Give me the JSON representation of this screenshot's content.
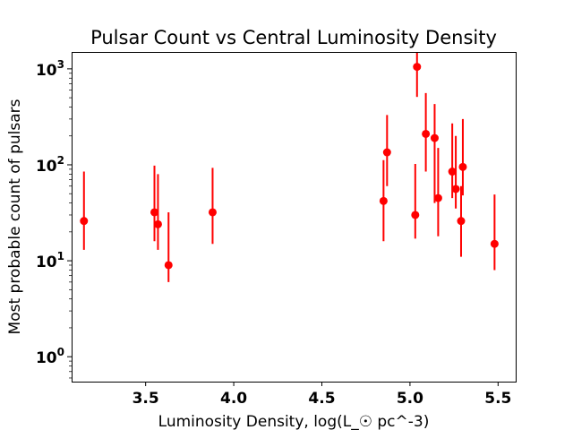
{
  "chart_data": {
    "type": "scatter",
    "title": "Pulsar Count vs Central Luminosity Density",
    "xlabel": "Luminosity Density, log(L_☉ pc^-3)",
    "ylabel": "Most probable count of pulsars",
    "xlim": [
      3.08,
      5.6
    ],
    "ylim": [
      0.55,
      1500
    ],
    "yscale": "log",
    "grid": false,
    "marker_color": "#ff0000",
    "xticks": [
      {
        "value": 3.5,
        "label": "3.5"
      },
      {
        "value": 4.0,
        "label": "4.0"
      },
      {
        "value": 4.5,
        "label": "4.5"
      },
      {
        "value": 5.0,
        "label": "5.0"
      },
      {
        "value": 5.5,
        "label": "5.5"
      }
    ],
    "yticks": [
      {
        "value": 1,
        "base": "10",
        "exp": "0"
      },
      {
        "value": 10,
        "base": "10",
        "exp": "1"
      },
      {
        "value": 100,
        "base": "10",
        "exp": "2"
      },
      {
        "value": 1000,
        "base": "10",
        "exp": "3"
      }
    ],
    "points": [
      {
        "x": 3.15,
        "y": 26,
        "ylow": 13,
        "yhigh": 85
      },
      {
        "x": 3.55,
        "y": 32,
        "ylow": 16,
        "yhigh": 98
      },
      {
        "x": 3.57,
        "y": 24,
        "ylow": 13,
        "yhigh": 80
      },
      {
        "x": 3.63,
        "y": 9,
        "ylow": 6,
        "yhigh": 32
      },
      {
        "x": 3.88,
        "y": 32,
        "ylow": 15,
        "yhigh": 93
      },
      {
        "x": 4.85,
        "y": 42,
        "ylow": 16,
        "yhigh": 112
      },
      {
        "x": 4.87,
        "y": 135,
        "ylow": 60,
        "yhigh": 330
      },
      {
        "x": 5.03,
        "y": 30,
        "ylow": 17,
        "yhigh": 102
      },
      {
        "x": 5.04,
        "y": 1050,
        "ylow": 510,
        "yhigh": 1500
      },
      {
        "x": 5.09,
        "y": 210,
        "ylow": 85,
        "yhigh": 560
      },
      {
        "x": 5.14,
        "y": 190,
        "ylow": 40,
        "yhigh": 430
      },
      {
        "x": 5.16,
        "y": 45,
        "ylow": 18,
        "yhigh": 150
      },
      {
        "x": 5.24,
        "y": 85,
        "ylow": 45,
        "yhigh": 270
      },
      {
        "x": 5.26,
        "y": 56,
        "ylow": 35,
        "yhigh": 200
      },
      {
        "x": 5.29,
        "y": 26,
        "ylow": 11,
        "yhigh": 60
      },
      {
        "x": 5.3,
        "y": 95,
        "ylow": 48,
        "yhigh": 300
      },
      {
        "x": 5.48,
        "y": 15,
        "ylow": 8,
        "yhigh": 49
      }
    ]
  }
}
